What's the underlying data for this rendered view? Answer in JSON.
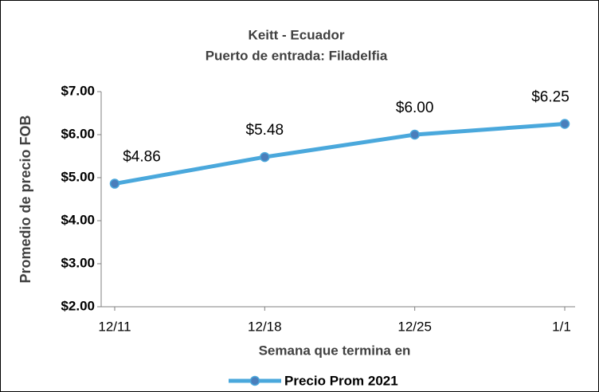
{
  "chart_data": {
    "type": "line",
    "title": "Keitt - Ecuador",
    "subtitle": "Puerto de entrada: Filadelfia",
    "y_label": "Promedio de precio FOB",
    "x_label": "Semana que termina en",
    "categories": [
      "12/11",
      "12/18",
      "12/25",
      "1/1"
    ],
    "series": [
      {
        "name": "Precio Prom 2021",
        "color": "#4aa8dc",
        "marker_color": "#4a7ebb",
        "values": [
          4.86,
          5.48,
          6.0,
          6.25
        ],
        "value_labels": [
          "$4.86",
          "$5.48",
          "$6.00",
          "$6.25"
        ]
      }
    ],
    "ylim": [
      2,
      7
    ],
    "yticks": [
      {
        "value": 2,
        "label": "$2.00"
      },
      {
        "value": 3,
        "label": "$3.00"
      },
      {
        "value": 4,
        "label": "$4.00"
      },
      {
        "value": 5,
        "label": "$5.00"
      },
      {
        "value": 6,
        "label": "$6.00"
      },
      {
        "value": 7,
        "label": "$7.00"
      }
    ],
    "grid": false,
    "legend": "bottom"
  }
}
